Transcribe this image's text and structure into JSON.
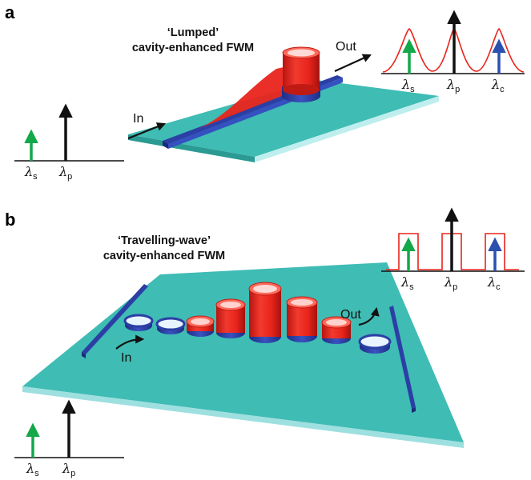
{
  "panel_a": {
    "label": "a",
    "title_line1": "‘Lumped’",
    "title_line2": "cavity-enhanced FWM",
    "in_label": "In",
    "out_label": "Out",
    "input_spectrum": {
      "lambda_s": "s",
      "lambda_p": "p"
    },
    "output_spectrum": {
      "lambda_s": "s",
      "lambda_p": "p",
      "lambda_c": "c"
    }
  },
  "panel_b": {
    "label": "b",
    "title_line1": "‘Travelling-wave’",
    "title_line2": "cavity-enhanced FWM",
    "in_label": "In",
    "out_label": "Out",
    "input_spectrum": {
      "lambda_s": "s",
      "lambda_p": "p"
    },
    "output_spectrum": {
      "lambda_s": "s",
      "lambda_p": "p",
      "lambda_c": "c"
    }
  },
  "colors": {
    "signal": "#13a84a",
    "pump": "#111111",
    "conjugate": "#2a50b0",
    "field": "#e8241c",
    "substrate": "#3fbcb4",
    "waveguide": "#2c3fa5"
  }
}
